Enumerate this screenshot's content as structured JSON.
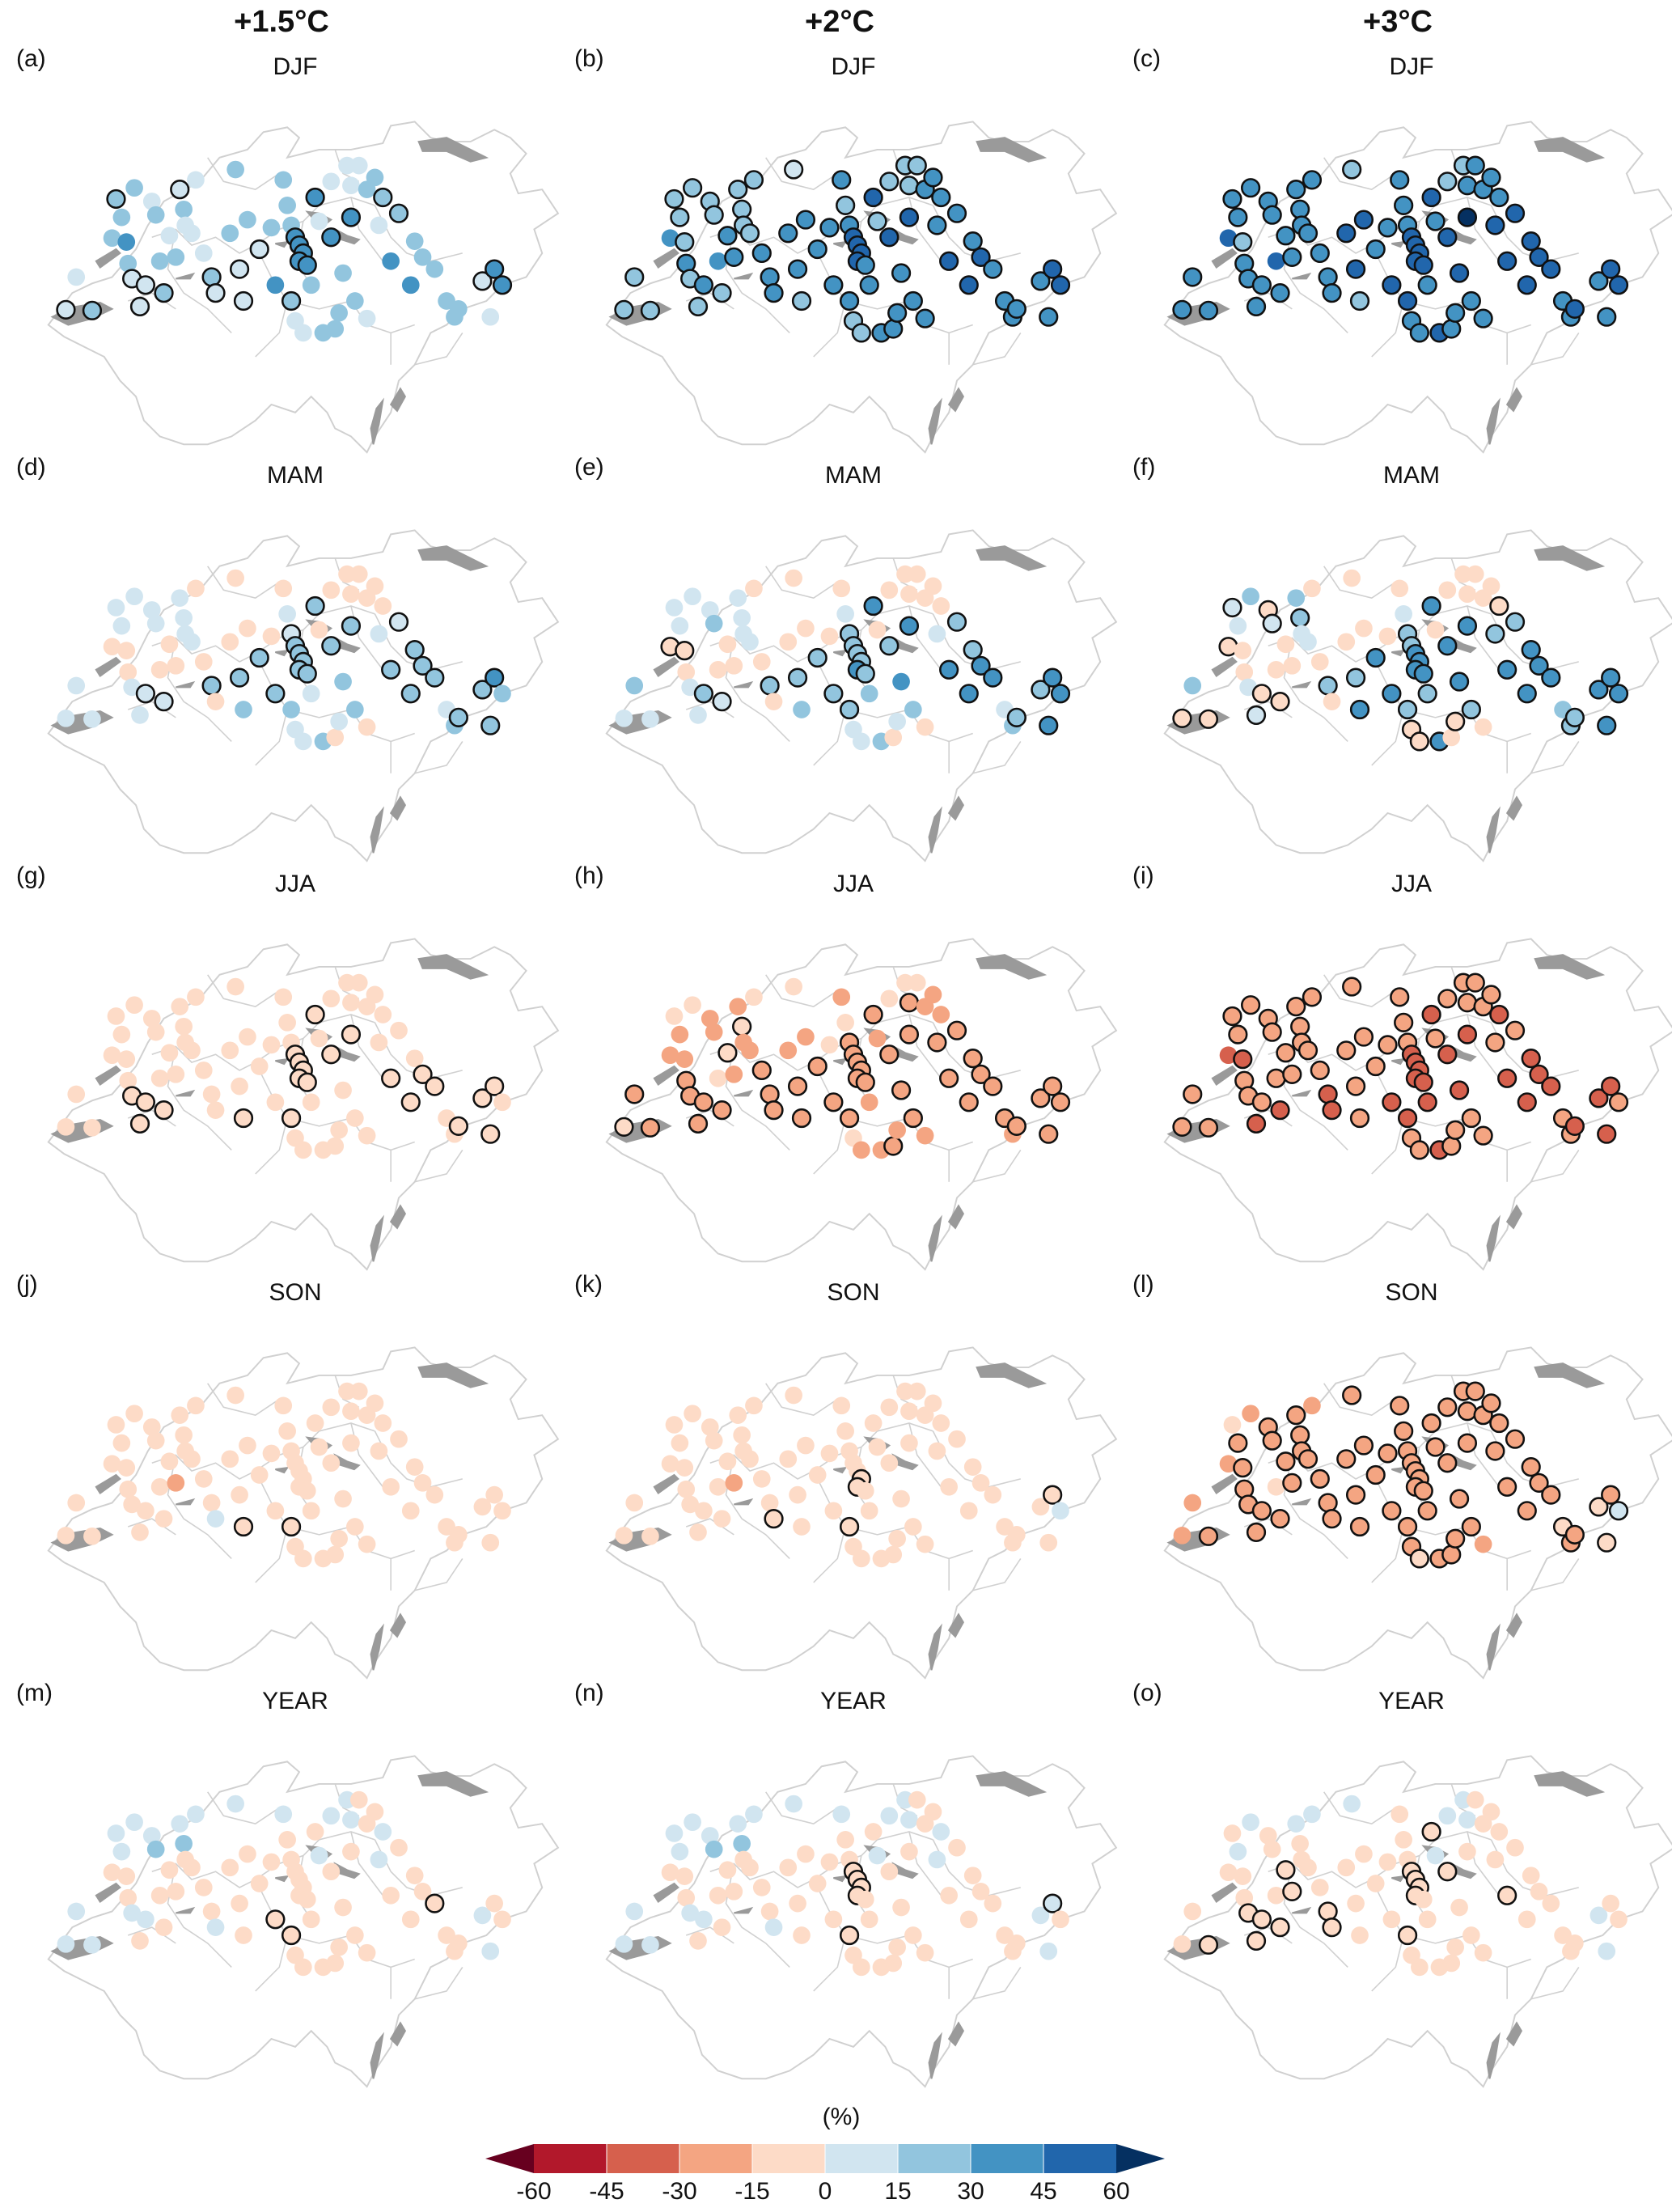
{
  "columns": [
    "+1.5°C",
    "+2°C",
    "+3°C"
  ],
  "seasons": [
    "DJF",
    "MAM",
    "JJA",
    "SON",
    "YEAR"
  ],
  "panel_labels": [
    "(a)",
    "(b)",
    "(c)",
    "(d)",
    "(e)",
    "(f)",
    "(g)",
    "(h)",
    "(i)",
    "(j)",
    "(k)",
    "(l)",
    "(m)",
    "(n)",
    "(o)"
  ],
  "colorbar": {
    "unit": "(%)",
    "ticks": [
      "-60",
      "-45",
      "-30",
      "-15",
      "0",
      "15",
      "30",
      "45",
      "60"
    ],
    "colors": [
      "#67001f",
      "#b2182b",
      "#d6604d",
      "#f4a582",
      "#fddbc7",
      "#d1e5f0",
      "#92c5de",
      "#4393c3",
      "#2166ac",
      "#053061"
    ]
  },
  "map": {
    "border_color": "#d0d0d0",
    "lake_color": "#9a9a9a",
    "station_outline_color": "#111111"
  }
}
